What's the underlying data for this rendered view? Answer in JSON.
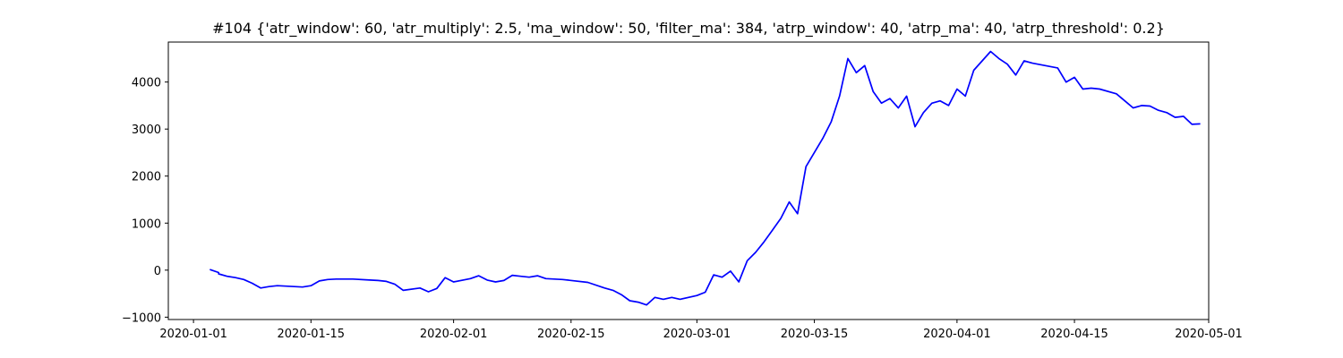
{
  "chart_data": {
    "type": "line",
    "title": "#104 {'atr_window': 60, 'atr_multiply': 2.5, 'ma_window': 50, 'filter_ma': 384, 'atrp_window': 40, 'atrp_ma': 40, 'atrp_threshold': 0.2}",
    "xlabel": "",
    "ylabel": "",
    "xlim": [
      "2019-12-29",
      "2020-05-01"
    ],
    "ylim": [
      -1050,
      4850
    ],
    "xticks": [
      "2020-01-01",
      "2020-01-15",
      "2020-02-01",
      "2020-02-15",
      "2020-03-01",
      "2020-03-15",
      "2020-04-01",
      "2020-04-15",
      "2020-05-01"
    ],
    "yticks": [
      -1000,
      0,
      1000,
      2000,
      3000,
      4000
    ],
    "ytick_labels": [
      "−1000",
      "0",
      "1000",
      "2000",
      "3000",
      "4000"
    ],
    "grid": false,
    "series": [
      {
        "color": "#0000ff",
        "x": [
          "2020-01-03",
          "2020-01-03",
          "2020-01-04",
          "2020-01-04",
          "2020-01-05",
          "2020-01-06",
          "2020-01-07",
          "2020-01-08",
          "2020-01-09",
          "2020-01-10",
          "2020-01-11",
          "2020-01-13",
          "2020-01-14",
          "2020-01-15",
          "2020-01-16",
          "2020-01-17",
          "2020-01-18",
          "2020-01-20",
          "2020-01-22",
          "2020-01-23",
          "2020-01-24",
          "2020-01-25",
          "2020-01-26",
          "2020-01-28",
          "2020-01-29",
          "2020-01-30",
          "2020-01-31",
          "2020-02-01",
          "2020-02-03",
          "2020-02-04",
          "2020-02-05",
          "2020-02-06",
          "2020-02-07",
          "2020-02-08",
          "2020-02-09",
          "2020-02-10",
          "2020-02-11",
          "2020-02-12",
          "2020-02-14",
          "2020-02-17",
          "2020-02-19",
          "2020-02-20",
          "2020-02-21",
          "2020-02-22",
          "2020-02-23",
          "2020-02-24",
          "2020-02-25",
          "2020-02-26",
          "2020-02-27",
          "2020-02-28",
          "2020-03-01",
          "2020-03-02",
          "2020-03-03",
          "2020-03-04",
          "2020-03-05",
          "2020-03-06",
          "2020-03-07",
          "2020-03-08",
          "2020-03-09",
          "2020-03-10",
          "2020-03-11",
          "2020-03-12",
          "2020-03-13",
          "2020-03-14",
          "2020-03-16",
          "2020-03-17",
          "2020-03-18",
          "2020-03-19",
          "2020-03-20",
          "2020-03-21",
          "2020-03-22",
          "2020-03-23",
          "2020-03-24",
          "2020-03-25",
          "2020-03-26",
          "2020-03-27",
          "2020-03-28",
          "2020-03-29",
          "2020-03-30",
          "2020-03-31",
          "2020-04-01",
          "2020-04-02",
          "2020-04-03",
          "2020-04-05",
          "2020-04-06",
          "2020-04-07",
          "2020-04-08",
          "2020-04-09",
          "2020-04-10",
          "2020-04-13",
          "2020-04-14",
          "2020-04-15",
          "2020-04-16",
          "2020-04-17",
          "2020-04-18",
          "2020-04-20",
          "2020-04-21",
          "2020-04-22",
          "2020-04-23",
          "2020-04-24",
          "2020-04-25",
          "2020-04-26",
          "2020-04-27",
          "2020-04-28",
          "2020-04-29",
          "2020-04-30"
        ],
        "y": [
          0,
          10,
          -50,
          -80,
          -130,
          -160,
          -200,
          -280,
          -380,
          -350,
          -330,
          -350,
          -360,
          -330,
          -230,
          -200,
          -190,
          -190,
          -210,
          -220,
          -240,
          -300,
          -430,
          -380,
          -460,
          -390,
          -160,
          -250,
          -180,
          -120,
          -210,
          -250,
          -220,
          -110,
          -130,
          -150,
          -120,
          -180,
          -200,
          -260,
          -380,
          -430,
          -520,
          -650,
          -680,
          -740,
          -580,
          -620,
          -580,
          -620,
          -540,
          -470,
          -100,
          -150,
          -20,
          -250,
          200,
          380,
          600,
          850,
          1100,
          1450,
          1200,
          2200,
          2800,
          3150,
          3700,
          4500,
          4200,
          4350,
          3800,
          3550,
          3650,
          3450,
          3700,
          3050,
          3350,
          3550,
          3600,
          3500,
          3850,
          3700,
          4250,
          4650,
          4500,
          4380,
          4150,
          4450,
          4400,
          4300,
          4000,
          4100,
          3850,
          3870,
          3850,
          3750,
          3600,
          3450,
          3500,
          3490,
          3400,
          3350,
          3250,
          3270,
          3100,
          3110
        ]
      }
    ]
  }
}
